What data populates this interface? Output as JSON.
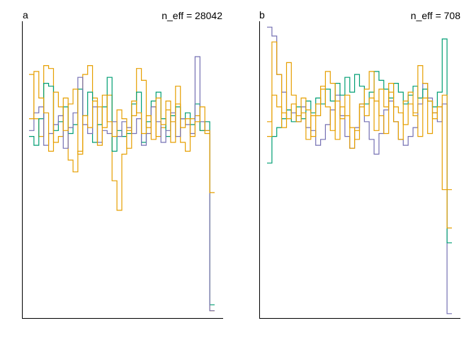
{
  "chart_data": [
    {
      "type": "line",
      "panel_label": "a",
      "annotation": "n_eff = 28042",
      "x_bins": 38,
      "series": [
        {
          "color": "#E69F00",
          "values": [
            0.82,
            0.67,
            0.61,
            0.85,
            0.84,
            0.59,
            0.61,
            0.74,
            0.53,
            0.49,
            0.56,
            0.82,
            0.85,
            0.74,
            0.71,
            0.64,
            0.75,
            0.46,
            0.36,
            0.55,
            0.63,
            0.68,
            0.84,
            0.8,
            0.64,
            0.71,
            0.61,
            0.64,
            0.73,
            0.66,
            0.78,
            0.59,
            0.56,
            0.67,
            0.68,
            0.63,
            0.62,
            0.02
          ]
        },
        {
          "color": "#009E73",
          "values": [
            0.61,
            0.58,
            0.67,
            0.79,
            0.78,
            0.63,
            0.66,
            0.71,
            0.62,
            0.65,
            0.77,
            0.68,
            0.76,
            0.59,
            0.65,
            0.71,
            0.81,
            0.56,
            0.63,
            0.61,
            0.62,
            0.72,
            0.76,
            0.59,
            0.66,
            0.73,
            0.76,
            0.67,
            0.61,
            0.68,
            0.71,
            0.67,
            0.69,
            0.65,
            0.72,
            0.63,
            0.66,
            0.04
          ]
        },
        {
          "color": "#7570B3",
          "values": [
            0.63,
            0.69,
            0.71,
            0.58,
            0.62,
            0.65,
            0.68,
            0.57,
            0.64,
            0.69,
            0.81,
            0.65,
            0.62,
            0.71,
            0.59,
            0.63,
            0.62,
            0.66,
            0.61,
            0.66,
            0.64,
            0.62,
            0.67,
            0.58,
            0.62,
            0.71,
            0.66,
            0.59,
            0.63,
            0.69,
            0.61,
            0.67,
            0.65,
            0.62,
            0.88,
            0.66,
            0.63,
            0.02
          ]
        },
        {
          "color": "#E69F00",
          "values": [
            0.67,
            0.83,
            0.74,
            0.69,
            0.56,
            0.76,
            0.71,
            0.63,
            0.72,
            0.77,
            0.55,
            0.68,
            0.64,
            0.73,
            0.58,
            0.75,
            0.66,
            0.61,
            0.7,
            0.67,
            0.57,
            0.73,
            0.69,
            0.62,
            0.68,
            0.6,
            0.74,
            0.65,
            0.7,
            0.59,
            0.72,
            0.64,
            0.67,
            0.61,
            0.66,
            0.71,
            0.63,
            0.42
          ]
        }
      ]
    },
    {
      "type": "line",
      "panel_label": "b",
      "annotation": "n_eff = 708",
      "x_bins": 38,
      "series": [
        {
          "color": "#7570B3",
          "values": [
            0.98,
            0.95,
            0.82,
            0.76,
            0.7,
            0.69,
            0.66,
            0.71,
            0.64,
            0.63,
            0.58,
            0.6,
            0.65,
            0.7,
            0.75,
            0.68,
            0.61,
            0.57,
            0.64,
            0.72,
            0.66,
            0.6,
            0.55,
            0.62,
            0.7,
            0.73,
            0.66,
            0.6,
            0.58,
            0.61,
            0.64,
            0.72,
            0.79,
            0.74,
            0.69,
            0.66,
            0.72,
            0.01
          ]
        },
        {
          "color": "#009E73",
          "values": [
            0.52,
            0.61,
            0.64,
            0.67,
            0.7,
            0.66,
            0.71,
            0.67,
            0.73,
            0.69,
            0.74,
            0.72,
            0.77,
            0.73,
            0.79,
            0.75,
            0.81,
            0.76,
            0.82,
            0.78,
            0.72,
            0.76,
            0.83,
            0.8,
            0.77,
            0.74,
            0.79,
            0.76,
            0.72,
            0.75,
            0.78,
            0.74,
            0.77,
            0.73,
            0.71,
            0.76,
            0.94,
            0.25
          ]
        },
        {
          "color": "#E69F00",
          "values": [
            0.66,
            0.75,
            0.71,
            0.69,
            0.67,
            0.72,
            0.66,
            0.74,
            0.7,
            0.61,
            0.68,
            0.78,
            0.71,
            0.63,
            0.73,
            0.67,
            0.75,
            0.64,
            0.6,
            0.72,
            0.68,
            0.74,
            0.63,
            0.77,
            0.71,
            0.79,
            0.66,
            0.6,
            0.73,
            0.76,
            0.69,
            0.85,
            0.79,
            0.73,
            0.67,
            0.71,
            0.75,
            0.43
          ]
        },
        {
          "color": "#E69F00",
          "values": [
            0.61,
            0.93,
            0.82,
            0.64,
            0.86,
            0.75,
            0.68,
            0.69,
            0.6,
            0.68,
            0.72,
            0.77,
            0.83,
            0.79,
            0.6,
            0.71,
            0.68,
            0.57,
            0.63,
            0.71,
            0.77,
            0.83,
            0.73,
            0.68,
            0.62,
            0.76,
            0.71,
            0.69,
            0.65,
            0.72,
            0.68,
            0.61,
            0.74,
            0.62,
            0.69,
            0.71,
            0.43,
            0.3
          ]
        }
      ]
    }
  ]
}
